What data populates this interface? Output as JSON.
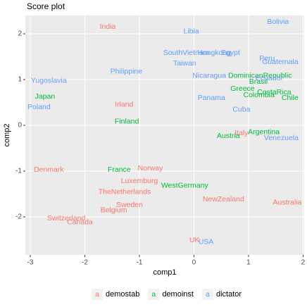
{
  "chart_data": {
    "type": "text-scatter",
    "title": "Score plot",
    "xlabel": "comp1",
    "ylabel": "comp2",
    "xlim": [
      -3.09,
      2.02
    ],
    "ylim": [
      -2.83,
      2.4
    ],
    "xticks": [
      -3,
      -2,
      -1,
      0,
      1,
      2
    ],
    "yticks": [
      -2,
      -1,
      0,
      1,
      2
    ],
    "grid": true,
    "legend_position": "bottom",
    "legend_key": "a",
    "series": [
      {
        "name": "demostab",
        "color": "#F8766D",
        "labels": [
          "India",
          "Irland",
          "Norway",
          "Luxemburg",
          "TheNetherlands",
          "Sweden",
          "Belgium",
          "Switzerland",
          "Canada",
          "Denmark",
          "NewZealand",
          "Australia",
          "UK",
          "Italy"
        ],
        "x": [
          -1.58,
          -1.28,
          -0.8,
          -1.0,
          -1.27,
          -1.18,
          -1.47,
          -2.34,
          -2.09,
          -2.66,
          0.54,
          1.71,
          0.01,
          0.87
        ],
        "values": [
          2.15,
          0.45,
          -0.94,
          -1.22,
          -1.46,
          -1.74,
          -1.86,
          -2.03,
          -2.12,
          -0.97,
          -1.62,
          -1.69,
          -2.51,
          -0.17
        ]
      },
      {
        "name": "demoinst",
        "color": "#00BA38",
        "labels": [
          "Japan",
          "Finland",
          "France",
          "WestGermany",
          "Austria",
          "Argentina",
          "Greece",
          "Colombia",
          "CostaRica",
          "Chile",
          "Brasil",
          "DominicanRepublic"
        ],
        "x": [
          -2.73,
          -1.23,
          -1.37,
          -0.17,
          0.63,
          1.28,
          0.89,
          1.19,
          1.47,
          1.76,
          1.18,
          1.21
        ],
        "values": [
          0.63,
          0.08,
          -0.97,
          -1.32,
          -0.23,
          -0.15,
          0.8,
          0.66,
          0.72,
          0.6,
          0.95,
          1.08
        ]
      },
      {
        "name": "dictator",
        "color": "#619CFF",
        "labels": [
          "Bolivia",
          "Libia",
          "SouthVietnam",
          "Taiwan",
          "Hongkong",
          "Egypt",
          "Peru",
          "Guatemala",
          "Philippine",
          "Yugoslavia",
          "Poland",
          "Nicaragua",
          "Panama",
          "Cuba",
          "Venezuela",
          "USA",
          "Ecuador"
        ],
        "x": [
          1.54,
          -0.05,
          -0.14,
          -0.17,
          0.37,
          0.67,
          1.34,
          1.58,
          -1.24,
          -2.66,
          -2.84,
          0.28,
          0.32,
          0.87,
          1.6,
          0.22,
          1.38
        ],
        "values": [
          2.26,
          2.05,
          1.58,
          1.35,
          1.58,
          1.58,
          1.46,
          1.38,
          1.17,
          0.97,
          0.4,
          1.08,
          0.6,
          0.34,
          -0.28,
          -2.55,
          1.03
        ]
      }
    ]
  }
}
